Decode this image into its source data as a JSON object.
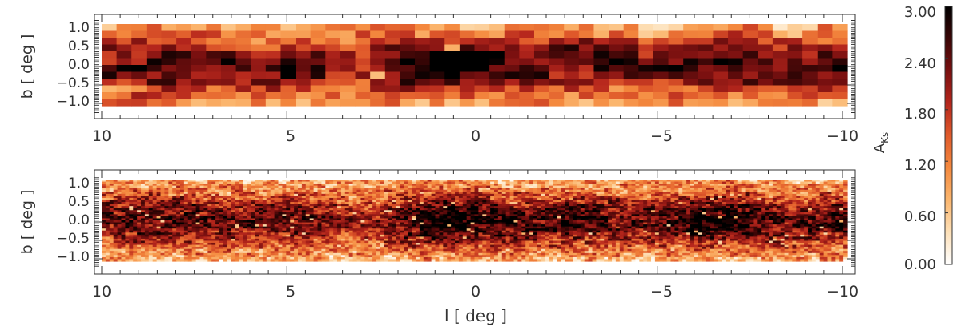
{
  "chart_data": [
    {
      "type": "heatmap",
      "resolution": "coarse",
      "xlabel": "",
      "ylabel": "b [ deg ]",
      "xlim": [
        10,
        -10
      ],
      "ylim": [
        -1.25,
        1.25
      ],
      "x_data_extent": [
        10,
        -10
      ],
      "y_data_extent": [
        -1.05,
        1.05
      ],
      "xticks": [
        10,
        5,
        0,
        -5,
        -10
      ],
      "xtick_labels": [
        "10",
        "5",
        "0",
        "−5",
        "−10"
      ],
      "yticks": [
        1.0,
        0.5,
        0.0,
        -0.5,
        -1.0
      ],
      "ytick_labels": [
        "1.0",
        "0.5",
        "0.0",
        "−0.5",
        "−1.0"
      ],
      "grid": false
    },
    {
      "type": "heatmap",
      "resolution": "fine",
      "xlabel": "l [ deg ]",
      "ylabel": "b [ deg ]",
      "xlim": [
        10,
        -10
      ],
      "ylim": [
        -1.25,
        1.25
      ],
      "x_data_extent": [
        10,
        -10
      ],
      "y_data_extent": [
        -1.05,
        1.05
      ],
      "xticks": [
        10,
        5,
        0,
        -5,
        -10
      ],
      "xtick_labels": [
        "10",
        "5",
        "0",
        "−5",
        "−10"
      ],
      "yticks": [
        1.0,
        0.5,
        0.0,
        -0.5,
        -1.0
      ],
      "ytick_labels": [
        "1.0",
        "0.5",
        "0.0",
        "−0.5",
        "−1.0"
      ],
      "grid": false
    }
  ],
  "colorbar": {
    "label_main": "A",
    "label_sub": "Ks",
    "range": [
      0.0,
      3.0
    ],
    "ticks": [
      3.0,
      2.4,
      1.8,
      1.2,
      0.6,
      0.0
    ],
    "tick_labels": [
      "3.00",
      "2.40",
      "1.80",
      "1.20",
      "0.60",
      "0.00"
    ],
    "colormap": [
      "#ffffff",
      "#fde0b8",
      "#fbb66e",
      "#f4893e",
      "#e05a2b",
      "#b5261c",
      "#7a1010",
      "#3a0606",
      "#000000"
    ]
  }
}
